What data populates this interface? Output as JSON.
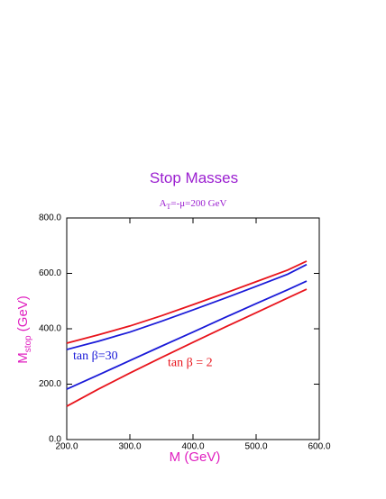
{
  "chart_data": {
    "type": "line",
    "title": "Stop Masses",
    "subtitle": {
      "main": "A",
      "sub": "T",
      "rest": "=-μ=200 GeV"
    },
    "ylabel": {
      "main": "M",
      "sub": "stop",
      "rest": " (GeV)"
    },
    "xlabel": "M (GeV)",
    "x": [
      200,
      250,
      300,
      350,
      400,
      450,
      500,
      550,
      580
    ],
    "series": [
      {
        "color": "#e8141c",
        "values": [
          348,
          378,
          410,
          447,
          487,
          528,
          570,
          612,
          644
        ]
      },
      {
        "color": "#1a1ad8",
        "values": [
          325,
          355,
          388,
          427,
          468,
          510,
          553,
          597,
          632
        ]
      },
      {
        "color": "#1a1ad8",
        "values": [
          182,
          233,
          285,
          337,
          388,
          440,
          491,
          541,
          572
        ]
      },
      {
        "color": "#e8141c",
        "values": [
          120,
          182,
          240,
          296,
          351,
          405,
          458,
          511,
          543
        ]
      }
    ],
    "annotations": [
      {
        "text": "tan β=30",
        "color": "#1a1ad8",
        "x": 200,
        "y": 300
      },
      {
        "text": "tan β = 2",
        "color": "#e8141c",
        "x": 350,
        "y": 275
      }
    ],
    "xlim": [
      200,
      600
    ],
    "ylim": [
      0,
      800
    ],
    "xticks": [
      {
        "value": 200,
        "label": "200.0"
      },
      {
        "value": 300,
        "label": "300.0"
      },
      {
        "value": 400,
        "label": "400.0"
      },
      {
        "value": 500,
        "label": "500.0"
      },
      {
        "value": 600,
        "label": "600.0"
      }
    ],
    "yticks": [
      {
        "value": 0,
        "label": "0.0"
      },
      {
        "value": 200,
        "label": "200.0"
      },
      {
        "value": 400,
        "label": "400.0"
      },
      {
        "value": 600,
        "label": "600.0"
      },
      {
        "value": 800,
        "label": "800.0"
      }
    ]
  }
}
